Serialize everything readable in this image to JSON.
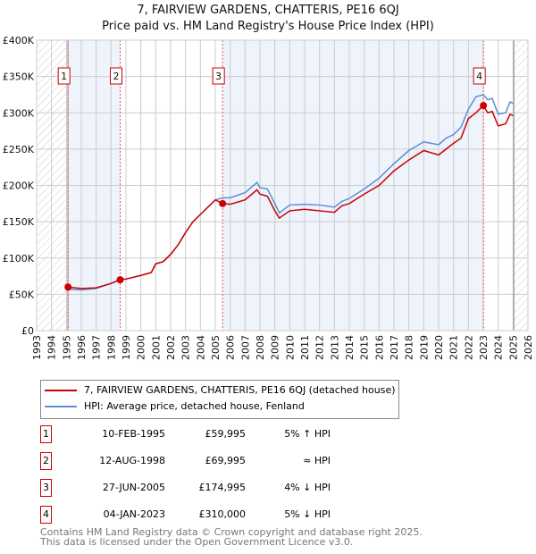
{
  "title": "7, FAIRVIEW GARDENS, CHATTERIS, PE16 6QJ",
  "subtitle": "Price paid vs. HM Land Registry's House Price Index (HPI)",
  "chart_data": {
    "type": "line",
    "xlim": [
      1993,
      2026
    ],
    "ylim": [
      0,
      400000
    ],
    "y_ticks": [
      {
        "v": 0,
        "l": "£0"
      },
      {
        "v": 50000,
        "l": "£50K"
      },
      {
        "v": 100000,
        "l": "£100K"
      },
      {
        "v": 150000,
        "l": "£150K"
      },
      {
        "v": 200000,
        "l": "£200K"
      },
      {
        "v": 250000,
        "l": "£250K"
      },
      {
        "v": 300000,
        "l": "£300K"
      },
      {
        "v": 350000,
        "l": "£350K"
      },
      {
        "v": 400000,
        "l": "£400K"
      }
    ],
    "x_ticks": [
      "1993",
      "1994",
      "1995",
      "1996",
      "1997",
      "1998",
      "1999",
      "2000",
      "2001",
      "2002",
      "2003",
      "2004",
      "2005",
      "2006",
      "2007",
      "2008",
      "2009",
      "2010",
      "2011",
      "2012",
      "2013",
      "2014",
      "2015",
      "2016",
      "2017",
      "2018",
      "2019",
      "2020",
      "2021",
      "2022",
      "2023",
      "2024",
      "2025",
      "2026"
    ],
    "hatched_before": 1995.1,
    "hatched_after": 2025.05,
    "series": [
      {
        "name": "7, FAIRVIEW GARDENS, CHATTERIS, PE16 6QJ (detached house)",
        "color": "#cc0000",
        "x": [
          1995.1,
          1996,
          1997,
          1998,
          1998.6,
          1999,
          2000,
          2000.7,
          2001,
          2001.5,
          2002,
          2002.5,
          2003,
          2003.5,
          2004,
          2004.5,
          2005,
          2005.5,
          2006,
          2007,
          2007.8,
          2008,
          2008.5,
          2009,
          2009.3,
          2010,
          2011,
          2012,
          2013,
          2013.5,
          2014,
          2015,
          2016,
          2017,
          2018,
          2019,
          2019.5,
          2020,
          2020.5,
          2021,
          2021.5,
          2022,
          2022.5,
          2023,
          2023.3,
          2023.6,
          2024,
          2024.5,
          2024.8,
          2025
        ],
        "values": [
          60000,
          58000,
          59000,
          65000,
          70000,
          71000,
          76000,
          80000,
          92000,
          95000,
          105000,
          118000,
          135000,
          150000,
          160000,
          170000,
          180000,
          175000,
          174000,
          180000,
          194000,
          188000,
          185000,
          165000,
          155000,
          165000,
          167000,
          165000,
          163000,
          172000,
          175000,
          188000,
          200000,
          220000,
          235000,
          248000,
          245000,
          242000,
          250000,
          258000,
          265000,
          292000,
          300000,
          310000,
          300000,
          302000,
          282000,
          285000,
          298000,
          296000
        ]
      },
      {
        "name": "HPI: Average price, detached house, Fenland",
        "color": "#5b8fd4",
        "x": [
          1995.1,
          1996,
          1997,
          1998,
          1998.6,
          1999,
          2000,
          2000.7,
          2001,
          2001.5,
          2002,
          2002.5,
          2003,
          2003.5,
          2004,
          2004.5,
          2005,
          2005.5,
          2006,
          2007,
          2007.8,
          2008,
          2008.5,
          2009,
          2009.3,
          2010,
          2011,
          2012,
          2013,
          2013.5,
          2014,
          2015,
          2016,
          2017,
          2018,
          2019,
          2019.5,
          2020,
          2020.5,
          2021,
          2021.5,
          2022,
          2022.5,
          2023,
          2023.3,
          2023.6,
          2024,
          2024.5,
          2024.8,
          2025
        ],
        "values": [
          57000,
          56000,
          58000,
          65000,
          70000,
          71000,
          76000,
          80000,
          92000,
          95000,
          105000,
          118000,
          135000,
          150000,
          160000,
          170000,
          180000,
          183000,
          183000,
          190000,
          204000,
          197000,
          195000,
          175000,
          162000,
          173000,
          174000,
          173000,
          170000,
          178000,
          182000,
          195000,
          210000,
          230000,
          248000,
          260000,
          258000,
          256000,
          265000,
          270000,
          280000,
          305000,
          322000,
          325000,
          318000,
          320000,
          298000,
          300000,
          315000,
          313000
        ]
      }
    ],
    "sales": [
      {
        "n": "1",
        "date": "10-FEB-1995",
        "x": 1995.11,
        "price": "£59,995",
        "value": 59995,
        "hpi": "5% ↑ HPI"
      },
      {
        "n": "2",
        "date": "12-AUG-1998",
        "x": 1998.61,
        "price": "£69,995",
        "value": 69995,
        "hpi": "≈ HPI"
      },
      {
        "n": "3",
        "date": "27-JUN-2005",
        "x": 2005.49,
        "price": "£174,995",
        "value": 174995,
        "hpi": "4% ↓ HPI"
      },
      {
        "n": "4",
        "date": "04-JAN-2023",
        "x": 2023.01,
        "price": "£310,000",
        "value": 310000,
        "hpi": "5% ↓ HPI"
      }
    ]
  },
  "footer": [
    "Contains HM Land Registry data © Crown copyright and database right 2025.",
    "This data is licensed under the Open Government Licence v3.0."
  ]
}
